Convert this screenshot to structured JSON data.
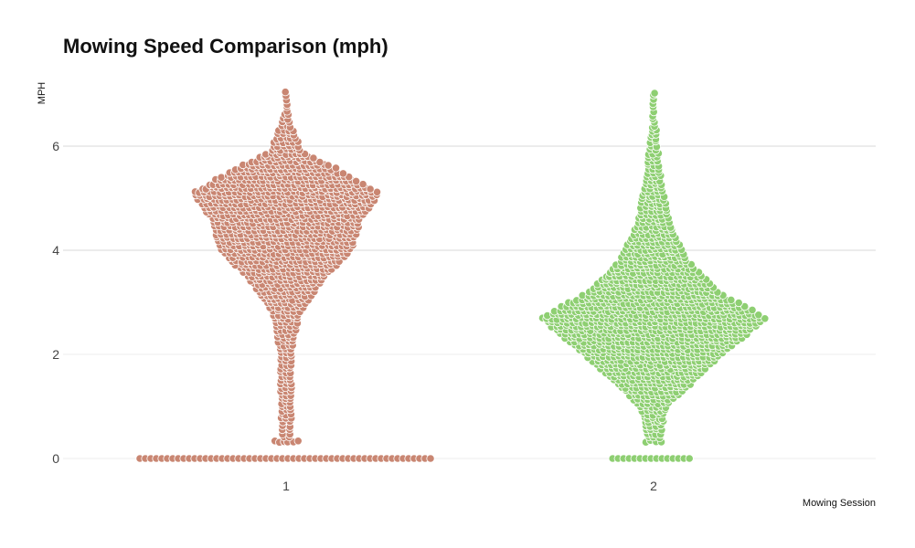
{
  "chart_data": {
    "type": "scatter",
    "subtype": "beeswarm",
    "title": "Mowing Speed Comparison (mph)",
    "xlabel": "Mowing Session",
    "ylabel": "MPH",
    "categories": [
      "1",
      "2"
    ],
    "ylim": [
      0,
      7.2
    ],
    "yticks": [
      0,
      2,
      4,
      6
    ],
    "grid": true,
    "series": [
      {
        "name": "1",
        "color": "#c98672",
        "density_profile": [
          {
            "y": 0.0,
            "half_width": 1.0
          },
          {
            "y": 0.35,
            "half_width": 0.04
          },
          {
            "y": 2.0,
            "half_width": 0.05
          },
          {
            "y": 2.8,
            "half_width": 0.1
          },
          {
            "y": 3.5,
            "half_width": 0.28
          },
          {
            "y": 4.0,
            "half_width": 0.46
          },
          {
            "y": 4.6,
            "half_width": 0.52
          },
          {
            "y": 5.1,
            "half_width": 0.65
          },
          {
            "y": 5.5,
            "half_width": 0.4
          },
          {
            "y": 5.9,
            "half_width": 0.12
          },
          {
            "y": 6.5,
            "half_width": 0.03
          },
          {
            "y": 7.1,
            "half_width": 0.01
          }
        ]
      },
      {
        "name": "2",
        "color": "#8ecf72",
        "density_profile": [
          {
            "y": 0.0,
            "half_width": 0.28
          },
          {
            "y": 0.35,
            "half_width": 0.05
          },
          {
            "y": 1.0,
            "half_width": 0.1
          },
          {
            "y": 1.8,
            "half_width": 0.4
          },
          {
            "y": 2.7,
            "half_width": 0.78
          },
          {
            "y": 3.2,
            "half_width": 0.45
          },
          {
            "y": 3.8,
            "half_width": 0.24
          },
          {
            "y": 4.5,
            "half_width": 0.12
          },
          {
            "y": 5.4,
            "half_width": 0.06
          },
          {
            "y": 6.2,
            "half_width": 0.03
          },
          {
            "y": 7.1,
            "half_width": 0.01
          }
        ]
      }
    ]
  }
}
